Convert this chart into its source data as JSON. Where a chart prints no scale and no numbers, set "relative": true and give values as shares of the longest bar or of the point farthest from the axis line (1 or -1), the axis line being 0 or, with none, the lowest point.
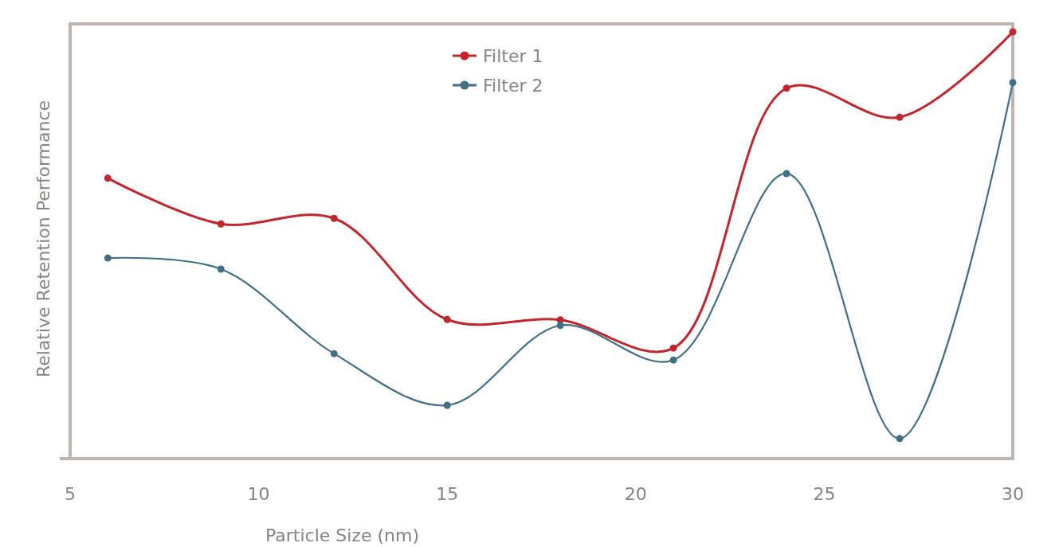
{
  "chart_data": {
    "type": "line",
    "relative": true,
    "xlabel": "Particle Size (nm)",
    "ylabel": "Relative Retention Performance",
    "x": [
      6,
      9,
      12,
      15,
      18,
      21,
      24,
      27,
      30
    ],
    "xlim": [
      5,
      30
    ],
    "xticks": [
      5,
      10,
      15,
      20,
      25,
      30
    ],
    "legend": "top",
    "marker": "circle",
    "line_style": "solid",
    "grid": false,
    "series": [
      {
        "name": "Filter 1",
        "color": "#c0262d",
        "values": [
          0.657,
          0.55,
          0.563,
          0.326,
          0.325,
          0.259,
          0.868,
          0.8,
          1
        ]
      },
      {
        "name": "Filter 2",
        "color": "#436f86",
        "values": [
          0.47,
          0.444,
          0.246,
          0.125,
          0.312,
          0.231,
          0.668,
          0.047,
          0.881
        ]
      }
    ]
  }
}
